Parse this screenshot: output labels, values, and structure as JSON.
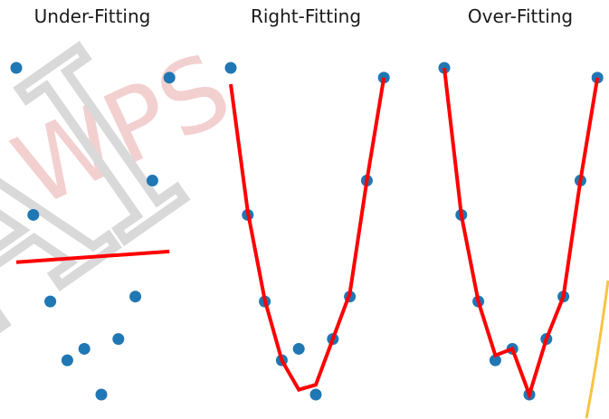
{
  "watermark": {
    "text_gray": "AI MS",
    "text_pink": "WPS PDF"
  },
  "colors": {
    "points": "#1f77b4",
    "fit_line": "#ff0000",
    "edge_line": "#f7c443"
  },
  "chart_data": [
    {
      "type": "scatter+line",
      "title": "Under-Fitting",
      "x": [
        0,
        1,
        2,
        3,
        4,
        5,
        6,
        7,
        8,
        9
      ],
      "y": [
        10.0,
        5.5,
        2.85,
        1.05,
        1.4,
        0.0,
        1.7,
        3.0,
        6.55,
        9.7
      ],
      "fit": {
        "x": [
          0,
          9
        ],
        "y": [
          4.05,
          4.38
        ]
      },
      "axes_visible": false,
      "grid": false
    },
    {
      "type": "scatter+line",
      "title": "Right-Fitting",
      "x": [
        0,
        1,
        2,
        3,
        4,
        5,
        6,
        7,
        8,
        9
      ],
      "y": [
        10.0,
        5.5,
        2.85,
        1.05,
        1.4,
        0.0,
        1.7,
        3.0,
        6.55,
        9.7
      ],
      "fit": {
        "x": [
          0,
          1,
          2,
          3,
          4,
          5,
          6,
          7,
          8,
          9
        ],
        "y": [
          9.5,
          5.6,
          2.9,
          1.05,
          0.15,
          0.3,
          1.7,
          3.1,
          6.55,
          9.7
        ]
      },
      "axes_visible": false,
      "grid": false
    },
    {
      "type": "scatter+line",
      "title": "Over-Fitting",
      "x": [
        0,
        1,
        2,
        3,
        4,
        5,
        6,
        7,
        8,
        9
      ],
      "y": [
        10.0,
        5.5,
        2.85,
        1.05,
        1.4,
        0.0,
        1.7,
        3.0,
        6.55,
        9.7
      ],
      "fit": {
        "x": [
          0,
          1,
          2,
          3,
          4,
          5,
          6,
          7,
          8,
          9
        ],
        "y": [
          10.0,
          5.5,
          2.85,
          1.2,
          1.4,
          0.0,
          1.7,
          3.0,
          6.55,
          9.7
        ]
      },
      "axes_visible": false,
      "grid": false
    }
  ]
}
